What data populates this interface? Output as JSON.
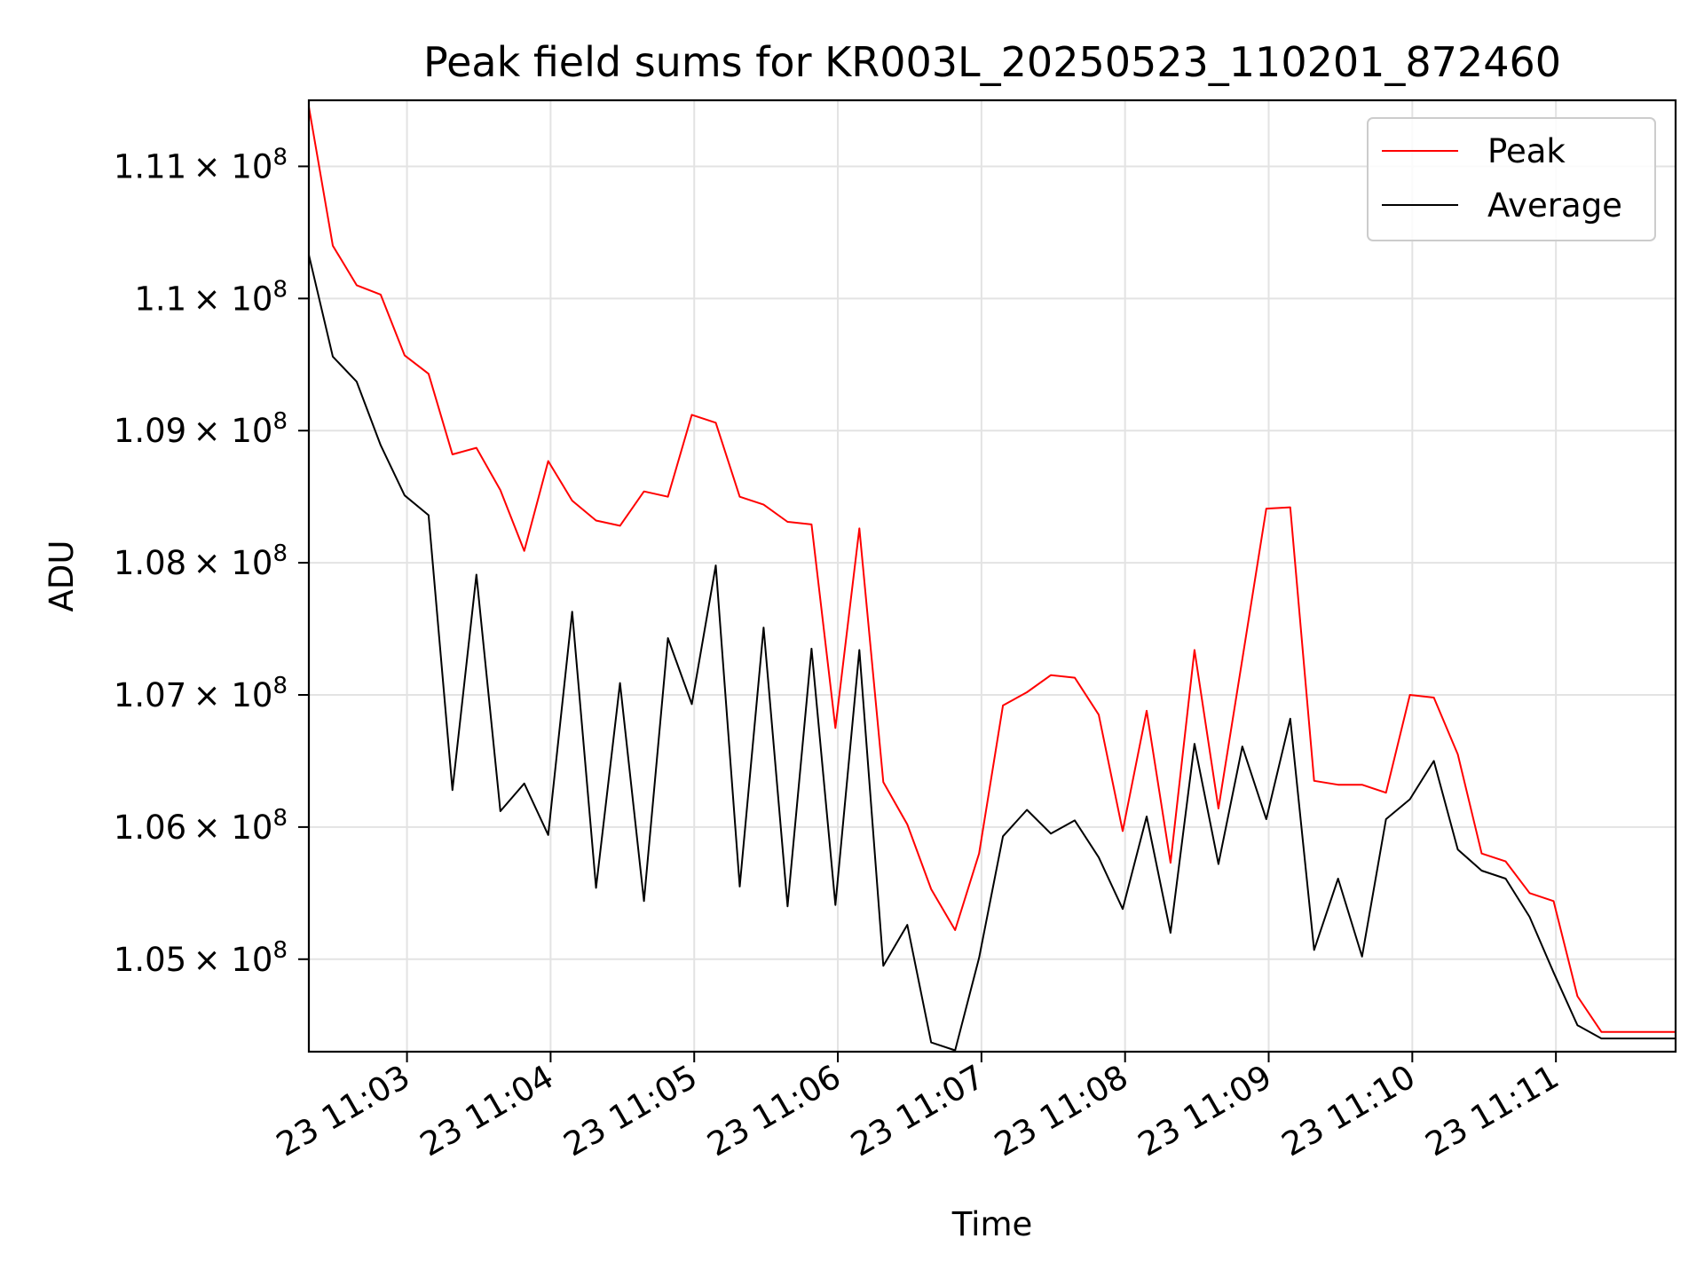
{
  "chart_data": {
    "type": "line",
    "title": "Peak field sums for KR003L_20250523_110201_872460",
    "xlabel": "Time",
    "ylabel": "ADU",
    "xlim": [
      "2025-05-23 11:02:19",
      "2025-05-23 11:11:50"
    ],
    "ylim": [
      104300000,
      111500000
    ],
    "x_ticks": [
      "23 11:03",
      "23 11:04",
      "23 11:05",
      "23 11:06",
      "23 11:07",
      "23 11:08",
      "23 11:09",
      "23 11:10",
      "23 11:11"
    ],
    "y_ticks": [
      {
        "value": 105000000,
        "mantissa": "1.05"
      },
      {
        "value": 106000000,
        "mantissa": "1.06"
      },
      {
        "value": 107000000,
        "mantissa": "1.07"
      },
      {
        "value": 108000000,
        "mantissa": "1.08"
      },
      {
        "value": 109000000,
        "mantissa": "1.09"
      },
      {
        "value": 110000000,
        "mantissa": "1.1"
      },
      {
        "value": 111000000,
        "mantissa": "1.11"
      }
    ],
    "y_tick_suffix": "× 10",
    "y_tick_exponent": "8",
    "grid": true,
    "legend": "top-right",
    "x": [
      "2025-05-23 11:02:19",
      "2025-05-23 11:02:29",
      "2025-05-23 11:02:39",
      "2025-05-23 11:02:49",
      "2025-05-23 11:02:59",
      "2025-05-23 11:03:09",
      "2025-05-23 11:03:19",
      "2025-05-23 11:03:29",
      "2025-05-23 11:03:39",
      "2025-05-23 11:03:49",
      "2025-05-23 11:03:59",
      "2025-05-23 11:04:09",
      "2025-05-23 11:04:19",
      "2025-05-23 11:04:29",
      "2025-05-23 11:04:39",
      "2025-05-23 11:04:49",
      "2025-05-23 11:04:59",
      "2025-05-23 11:05:09",
      "2025-05-23 11:05:19",
      "2025-05-23 11:05:29",
      "2025-05-23 11:05:39",
      "2025-05-23 11:05:49",
      "2025-05-23 11:05:59",
      "2025-05-23 11:06:09",
      "2025-05-23 11:06:19",
      "2025-05-23 11:06:29",
      "2025-05-23 11:06:39",
      "2025-05-23 11:06:49",
      "2025-05-23 11:06:59",
      "2025-05-23 11:07:09",
      "2025-05-23 11:07:19",
      "2025-05-23 11:07:29",
      "2025-05-23 11:07:39",
      "2025-05-23 11:07:49",
      "2025-05-23 11:07:59",
      "2025-05-23 11:08:09",
      "2025-05-23 11:08:19",
      "2025-05-23 11:08:29",
      "2025-05-23 11:08:39",
      "2025-05-23 11:08:49",
      "2025-05-23 11:08:59",
      "2025-05-23 11:09:09",
      "2025-05-23 11:09:19",
      "2025-05-23 11:09:29",
      "2025-05-23 11:09:39",
      "2025-05-23 11:09:49",
      "2025-05-23 11:09:59",
      "2025-05-23 11:10:09",
      "2025-05-23 11:10:19",
      "2025-05-23 11:10:29",
      "2025-05-23 11:10:39",
      "2025-05-23 11:10:49",
      "2025-05-23 11:10:59",
      "2025-05-23 11:11:09",
      "2025-05-23 11:11:19",
      "2025-05-23 11:11:29",
      "2025-05-23 11:11:39",
      "2025-05-23 11:11:50"
    ],
    "series": [
      {
        "name": "Peak",
        "color": "#ff0000",
        "values": [
          111450000,
          110400000,
          110100000,
          110030000,
          109570000,
          109430000,
          108820000,
          108870000,
          108550000,
          108090000,
          108770000,
          108470000,
          108320000,
          108280000,
          108540000,
          108500000,
          109120000,
          109060000,
          108500000,
          108440000,
          108310000,
          108290000,
          106750000,
          108260000,
          106340000,
          106020000,
          105530000,
          105220000,
          105800000,
          106920000,
          107020000,
          107150000,
          107130000,
          106850000,
          105970000,
          106880000,
          105730000,
          107340000,
          106140000,
          107270000,
          108410000,
          108420000,
          106350000,
          106320000,
          106320000,
          106260000,
          107000000,
          106980000,
          106550000,
          105800000,
          105740000,
          105500000,
          105440000,
          104720000,
          104450000,
          104450000,
          104450000,
          104450000
        ]
      },
      {
        "name": "Average",
        "color": "#000000",
        "values": [
          110330000,
          109560000,
          109370000,
          108890000,
          108510000,
          108360000,
          106280000,
          107910000,
          106120000,
          106330000,
          105940000,
          107630000,
          105540000,
          107090000,
          105440000,
          107430000,
          106930000,
          107980000,
          105550000,
          107510000,
          105400000,
          107350000,
          105410000,
          107340000,
          104950000,
          105260000,
          104370000,
          104310000,
          105010000,
          105930000,
          106130000,
          105950000,
          106050000,
          105770000,
          105380000,
          106080000,
          105200000,
          106630000,
          105720000,
          106610000,
          106060000,
          106820000,
          105070000,
          105610000,
          105020000,
          106060000,
          106210000,
          106500000,
          105830000,
          105670000,
          105610000,
          105320000,
          104900000,
          104500000,
          104400000,
          104400000,
          104400000,
          104400000
        ]
      }
    ]
  }
}
